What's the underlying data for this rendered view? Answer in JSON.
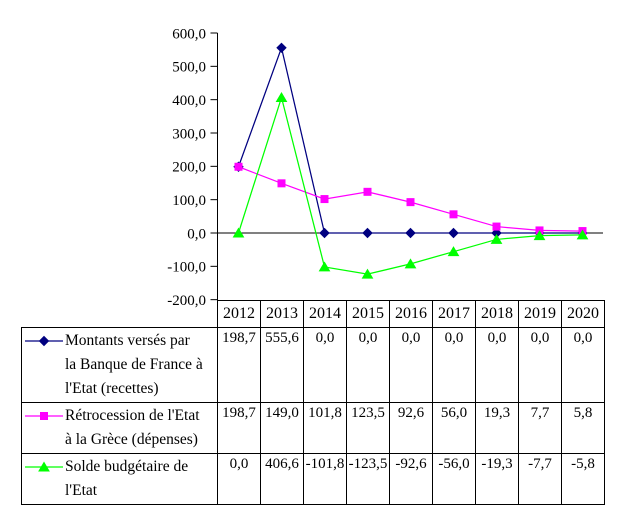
{
  "chart_data": {
    "type": "line",
    "title": "",
    "xlabel": "",
    "ylabel": "",
    "categories": [
      "2012",
      "2013",
      "2014",
      "2015",
      "2016",
      "2017",
      "2018",
      "2019",
      "2020"
    ],
    "series": [
      {
        "name": "Montants versés par la Banque de France à l'Etat (recettes)",
        "color": "#000080",
        "marker": "diamond",
        "values": [
          198.7,
          555.6,
          0.0,
          0.0,
          0.0,
          0.0,
          0.0,
          0.0,
          0.0
        ]
      },
      {
        "name": "Rétrocession de l'Etat à la Grèce (dépenses)",
        "color": "#FF00FF",
        "marker": "square",
        "values": [
          198.7,
          149.0,
          101.8,
          123.5,
          92.6,
          56.0,
          19.3,
          7.7,
          5.8
        ]
      },
      {
        "name": "Solde budgétaire de l'Etat",
        "color": "#00FF00",
        "marker": "triangle-up",
        "values": [
          0.0,
          406.6,
          -101.8,
          -123.5,
          -92.6,
          -56.0,
          -19.3,
          -7.7,
          -5.8
        ]
      }
    ],
    "ylim": [
      -200,
      600
    ],
    "ytick_step": 100,
    "ytick_labels": [
      "600,0",
      "500,0",
      "400,0",
      "300,0",
      "200,0",
      "100,0",
      "0,0",
      "-100,0",
      "-200,0"
    ],
    "grid": false,
    "legend_position": "data-table-left-column",
    "axis_color": "#000000"
  },
  "table": {
    "border_color": "#000000",
    "rows": [
      {
        "label_lines": [
          "Montants versés par",
          "la Banque de France à",
          "l'Etat (recettes)"
        ],
        "values": [
          "198,7",
          "555,6",
          "0,0",
          "0,0",
          "0,0",
          "0,0",
          "0,0",
          "0,0",
          "0,0"
        ]
      },
      {
        "label_lines": [
          "Rétrocession de l'Etat",
          "à la Grèce (dépenses)"
        ],
        "values": [
          "198,7",
          "149,0",
          "101,8",
          "123,5",
          "92,6",
          "56,0",
          "19,3",
          "7,7",
          "5,8"
        ]
      },
      {
        "label_lines": [
          "Solde budgétaire de",
          "l'Etat"
        ],
        "values": [
          "0,0",
          "406,6",
          "-101,8",
          "-123,5",
          "-92,6",
          "-56,0",
          "-19,3",
          "-7,7",
          "-5,8"
        ]
      }
    ]
  }
}
